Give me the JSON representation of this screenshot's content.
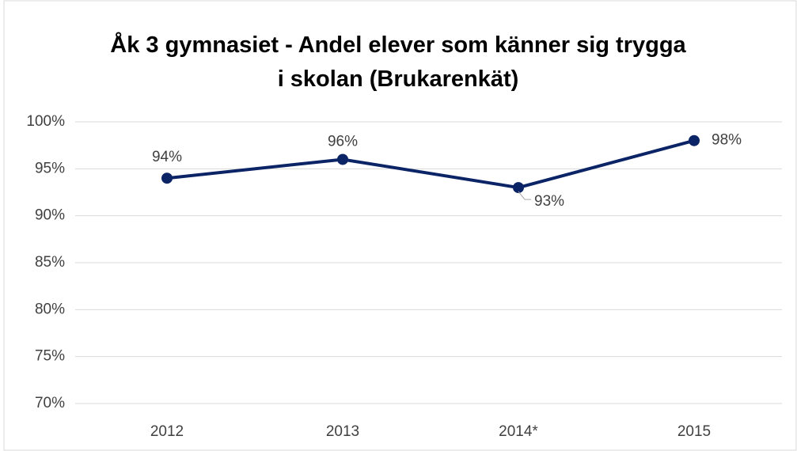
{
  "chart_data": {
    "type": "line",
    "title": "Åk 3 gymnasiet - Andel elever som känner sig trygga i skolan (Brukarenkät)",
    "categories": [
      "2012",
      "2013",
      "2014*",
      "2015"
    ],
    "series": [
      {
        "name": "Andel",
        "color": "#0b2466",
        "values": [
          94,
          96,
          93,
          98
        ],
        "value_labels": [
          "94%",
          "96%",
          "93%",
          "98%"
        ]
      }
    ],
    "ylim": [
      70,
      100
    ],
    "yticks": [
      {
        "value": 70,
        "label": "70%"
      },
      {
        "value": 75,
        "label": "75%"
      },
      {
        "value": 80,
        "label": "80%"
      },
      {
        "value": 85,
        "label": "85%"
      },
      {
        "value": 90,
        "label": "90%"
      },
      {
        "value": 95,
        "label": "95%"
      },
      {
        "value": 100,
        "label": "100%"
      }
    ],
    "grid": true
  }
}
